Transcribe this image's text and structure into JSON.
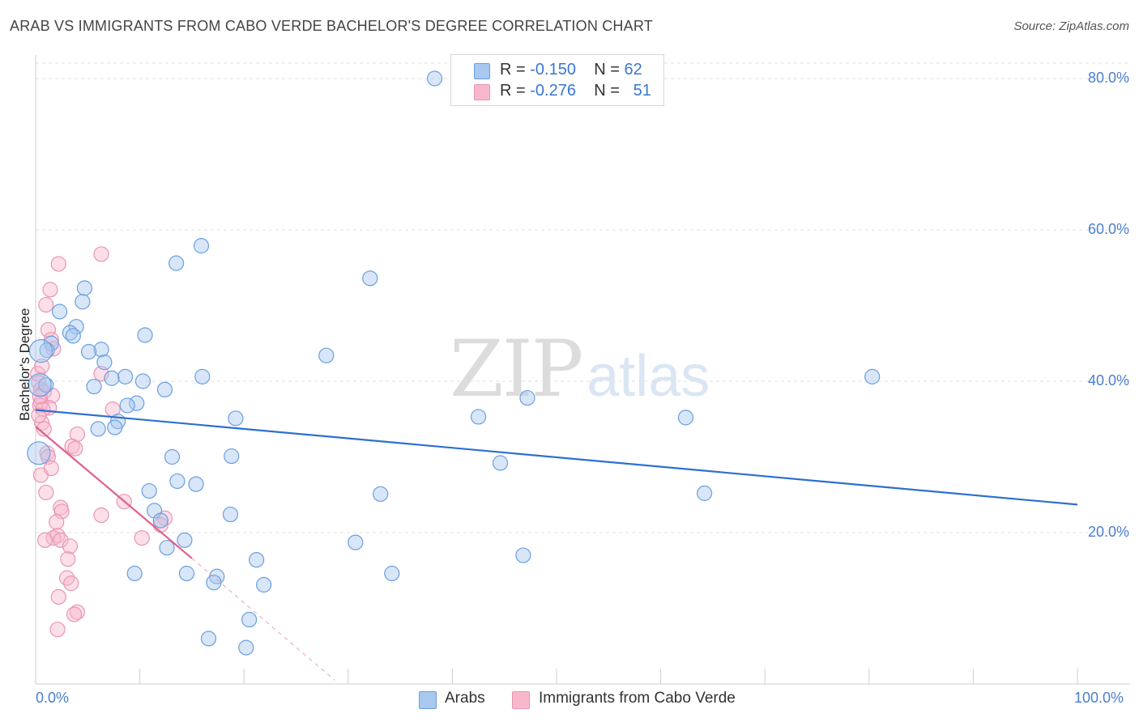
{
  "title": "ARAB VS IMMIGRANTS FROM CABO VERDE BACHELOR'S DEGREE CORRELATION CHART",
  "source": "Source: ZipAtlas.com",
  "watermark": {
    "zip": "ZIP",
    "atlas": "atlas"
  },
  "legend_top": {
    "rows": [
      {
        "r_label": "R = ",
        "r_value": "-0.150",
        "n_label": "N = ",
        "n_value": "62",
        "color": "#a8c8f0"
      },
      {
        "r_label": "R = ",
        "r_value": "-0.276",
        "n_label": "N = ",
        "n_value": "51",
        "color": "#f8b8cc"
      }
    ]
  },
  "chart_data": {
    "type": "scatter",
    "title": "ARAB VS IMMIGRANTS FROM CABO VERDE BACHELOR'S DEGREE CORRELATION CHART",
    "xlabel": "",
    "ylabel": "Bachelor's Degree",
    "xlim": [
      0,
      100
    ],
    "ylim": [
      0,
      80
    ],
    "x_tick_labels": [
      "0.0%",
      "100.0%"
    ],
    "y_ticks": [
      20,
      40,
      60,
      80
    ],
    "y_tick_labels": [
      "20.0%",
      "40.0%",
      "60.0%",
      "80.0%"
    ],
    "grid": true,
    "legend_position": "top-center",
    "series": [
      {
        "name": "Arabs",
        "color": "#6a9fe0",
        "fill": "#a8c8f0",
        "trend": {
          "x0": 0,
          "y0": 36.2,
          "x1": 100,
          "y1": 23.7,
          "color": "#2d6fd0"
        },
        "points": [
          [
            38.3,
            80.0
          ],
          [
            15.9,
            57.9
          ],
          [
            13.5,
            55.6
          ],
          [
            32.1,
            53.6
          ],
          [
            4.7,
            52.3
          ],
          [
            4.5,
            50.5
          ],
          [
            2.3,
            49.2
          ],
          [
            3.9,
            47.2
          ],
          [
            3.3,
            46.4
          ],
          [
            1.5,
            45.0
          ],
          [
            3.6,
            46.0
          ],
          [
            10.5,
            46.1
          ],
          [
            1.1,
            44.1
          ],
          [
            6.3,
            44.2
          ],
          [
            5.1,
            43.9
          ],
          [
            6.6,
            42.5
          ],
          [
            27.9,
            43.4
          ],
          [
            1.0,
            39.5
          ],
          [
            5.6,
            39.3
          ],
          [
            8.6,
            40.6
          ],
          [
            7.3,
            40.4
          ],
          [
            10.3,
            40.0
          ],
          [
            16.0,
            40.6
          ],
          [
            80.3,
            40.6
          ],
          [
            12.4,
            38.9
          ],
          [
            9.7,
            37.1
          ],
          [
            8.8,
            36.8
          ],
          [
            47.2,
            37.8
          ],
          [
            7.9,
            34.7
          ],
          [
            7.6,
            33.9
          ],
          [
            6.0,
            33.7
          ],
          [
            19.2,
            35.1
          ],
          [
            42.5,
            35.3
          ],
          [
            62.4,
            35.2
          ],
          [
            13.1,
            30.0
          ],
          [
            18.8,
            30.1
          ],
          [
            44.6,
            29.2
          ],
          [
            13.6,
            26.8
          ],
          [
            15.4,
            26.4
          ],
          [
            10.9,
            25.5
          ],
          [
            33.1,
            25.1
          ],
          [
            64.2,
            25.2
          ],
          [
            11.4,
            22.9
          ],
          [
            18.7,
            22.4
          ],
          [
            12.0,
            21.6
          ],
          [
            14.3,
            19.0
          ],
          [
            30.7,
            18.7
          ],
          [
            12.6,
            18.0
          ],
          [
            46.8,
            17.0
          ],
          [
            21.2,
            16.4
          ],
          [
            9.5,
            14.6
          ],
          [
            14.5,
            14.6
          ],
          [
            34.2,
            14.6
          ],
          [
            17.4,
            14.2
          ],
          [
            17.1,
            13.4
          ],
          [
            21.9,
            13.1
          ],
          [
            20.5,
            8.5
          ],
          [
            16.6,
            6.0
          ],
          [
            20.2,
            4.8
          ],
          [
            0.5,
            44.0
          ],
          [
            0.4,
            39.5
          ],
          [
            0.3,
            30.5
          ]
        ]
      },
      {
        "name": "Immigrants from Cabo Verde",
        "color": "#e896b4",
        "fill": "#f8b8cc",
        "trend": {
          "x0": 0,
          "y0": 34.0,
          "x1": 15.0,
          "y1": 16.6,
          "color": "#e0608c",
          "dash_x1": 28.7,
          "dash_y1": 0.5
        },
        "points": [
          [
            6.3,
            56.8
          ],
          [
            2.2,
            55.5
          ],
          [
            1.4,
            52.1
          ],
          [
            1.0,
            50.1
          ],
          [
            1.2,
            46.8
          ],
          [
            1.5,
            45.5
          ],
          [
            1.7,
            44.3
          ],
          [
            0.2,
            41.0
          ],
          [
            6.3,
            41.0
          ],
          [
            0.3,
            39.8
          ],
          [
            0.5,
            38.9
          ],
          [
            0.8,
            38.6
          ],
          [
            1.6,
            38.1
          ],
          [
            0.5,
            37.2
          ],
          [
            0.4,
            36.8
          ],
          [
            1.3,
            36.5
          ],
          [
            0.7,
            36.3
          ],
          [
            7.4,
            36.3
          ],
          [
            0.6,
            34.5
          ],
          [
            0.8,
            33.7
          ],
          [
            4.0,
            33.0
          ],
          [
            3.5,
            31.4
          ],
          [
            3.8,
            31.1
          ],
          [
            1.1,
            30.5
          ],
          [
            1.2,
            30.0
          ],
          [
            0.5,
            27.6
          ],
          [
            1.0,
            25.3
          ],
          [
            8.5,
            24.1
          ],
          [
            2.4,
            23.3
          ],
          [
            2.5,
            22.8
          ],
          [
            6.3,
            22.3
          ],
          [
            12.4,
            21.9
          ],
          [
            2.0,
            21.4
          ],
          [
            12.0,
            21.0
          ],
          [
            2.1,
            19.6
          ],
          [
            1.7,
            19.3
          ],
          [
            10.2,
            19.3
          ],
          [
            0.9,
            19.0
          ],
          [
            2.4,
            19.0
          ],
          [
            3.3,
            18.2
          ],
          [
            3.1,
            16.5
          ],
          [
            3.0,
            14.0
          ],
          [
            3.4,
            13.3
          ],
          [
            2.2,
            11.5
          ],
          [
            4.0,
            9.5
          ],
          [
            3.7,
            9.2
          ],
          [
            2.1,
            7.2
          ],
          [
            0.4,
            38.0
          ],
          [
            0.3,
            35.5
          ],
          [
            0.6,
            42.0
          ],
          [
            1.5,
            28.5
          ]
        ]
      }
    ]
  },
  "legend_bottom": [
    {
      "label": "Arabs",
      "color": "#a8c8f0"
    },
    {
      "label": "Immigrants from Cabo Verde",
      "color": "#f8b8cc"
    }
  ]
}
